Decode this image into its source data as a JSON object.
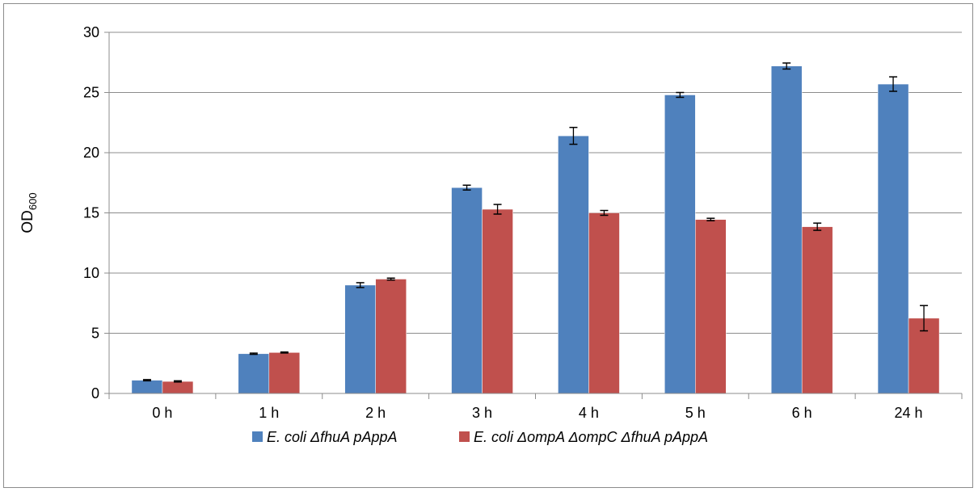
{
  "chart_data": {
    "type": "bar",
    "title": "",
    "xlabel": "",
    "ylabel": "OD",
    "ylabel_subscript": "600",
    "categories": [
      "0 h",
      "1 h",
      "2 h",
      "3 h",
      "4 h",
      "5 h",
      "6 h",
      "24 h"
    ],
    "ylim": [
      0,
      30
    ],
    "yticks": [
      0,
      5,
      10,
      15,
      20,
      25,
      30
    ],
    "grid": true,
    "legend_position": "bottom",
    "error_bars": true,
    "series": [
      {
        "name": "E. coli ΔfhuA pAppA",
        "color": "#4f81bd",
        "values": [
          1.1,
          3.3,
          9.0,
          17.1,
          21.4,
          24.8,
          27.2,
          25.7
        ],
        "errors": [
          0.05,
          0.05,
          0.2,
          0.2,
          0.7,
          0.2,
          0.25,
          0.6
        ]
      },
      {
        "name": "E. coli ΔompA ΔompC ΔfhuA pAppA",
        "color": "#c0504d",
        "values": [
          1.0,
          3.4,
          9.5,
          15.3,
          15.0,
          14.45,
          13.85,
          6.25
        ],
        "errors": [
          0.05,
          0.04,
          0.08,
          0.4,
          0.2,
          0.1,
          0.3,
          1.05
        ]
      }
    ]
  }
}
